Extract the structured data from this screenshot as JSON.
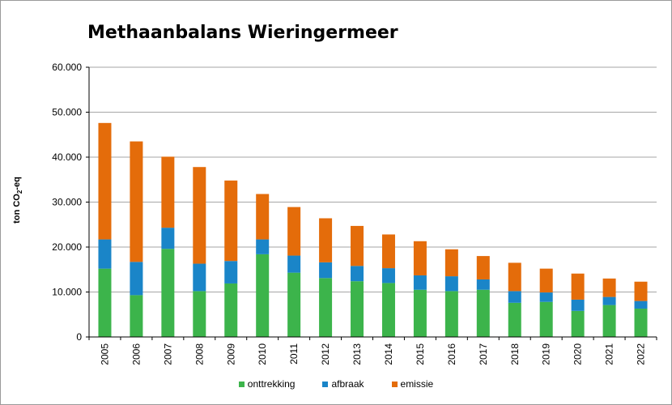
{
  "chart_data": {
    "type": "bar",
    "stacked": true,
    "title": "Methaanbalans Wieringermeer",
    "ylabel_prefix": "ton CO",
    "ylabel_sub": "2",
    "ylabel_suffix": "-eq",
    "ylim": [
      0,
      60000
    ],
    "yticks": [
      0,
      10000,
      20000,
      30000,
      40000,
      50000,
      60000
    ],
    "ytick_labels": [
      "0",
      "10.000",
      "20.000",
      "30.000",
      "40.000",
      "50.000",
      "60.000"
    ],
    "grid": true,
    "legend_position": "bottom",
    "categories": [
      "2005",
      "2006",
      "2007",
      "2008",
      "2009",
      "2010",
      "2011",
      "2012",
      "2013",
      "2014",
      "2015",
      "2016",
      "2017",
      "2018",
      "2019",
      "2020",
      "2021",
      "2022"
    ],
    "series": [
      {
        "name": "onttrekking",
        "color": "#3cb44b",
        "values": [
          15200,
          9300,
          19600,
          10200,
          11900,
          18400,
          14300,
          13100,
          12400,
          12000,
          10500,
          10200,
          10500,
          7600,
          7800,
          5800,
          7100,
          6300
        ]
      },
      {
        "name": "afbraak",
        "color": "#1a85c8",
        "values": [
          6500,
          7400,
          4700,
          6100,
          5000,
          3300,
          3800,
          3500,
          3400,
          3300,
          3200,
          3300,
          2300,
          2600,
          2100,
          2500,
          1800,
          1700
        ]
      },
      {
        "name": "emissie",
        "color": "#e46c0a",
        "values": [
          25900,
          26800,
          15800,
          21500,
          17900,
          10100,
          10800,
          9800,
          8900,
          7500,
          7600,
          6000,
          5200,
          6300,
          5300,
          5800,
          4100,
          4300
        ]
      }
    ]
  }
}
